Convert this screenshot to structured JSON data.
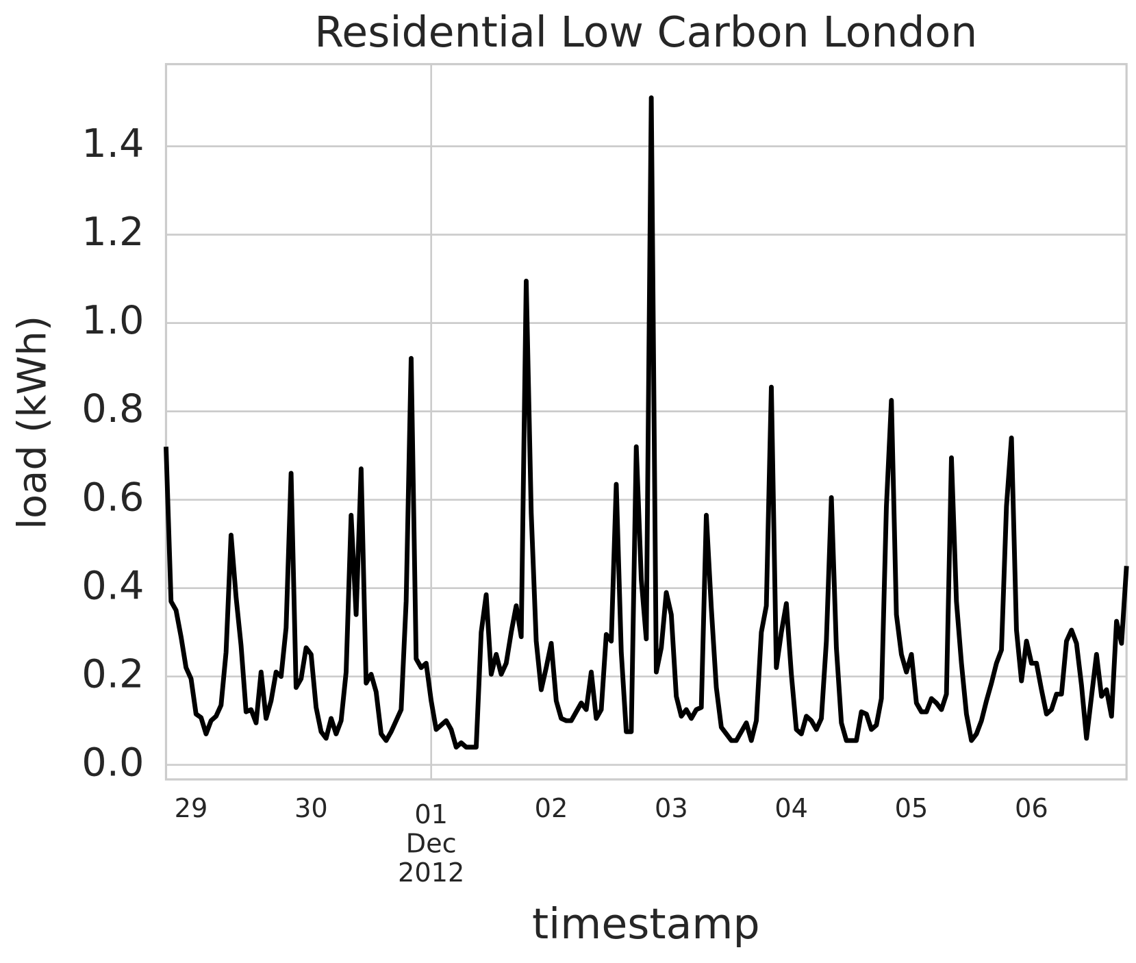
{
  "chart_data": {
    "type": "line",
    "title": "Residential Low Carbon London",
    "x_label": "timestamp",
    "y_label": "load (kWh)",
    "x": [
      "2012-11-28 19:00",
      "2012-11-28 20:00",
      "2012-11-28 21:00",
      "2012-11-28 22:00",
      "2012-11-28 23:00",
      "2012-11-29 00:00",
      "2012-11-29 01:00",
      "2012-11-29 02:00",
      "2012-11-29 03:00",
      "2012-11-29 04:00",
      "2012-11-29 05:00",
      "2012-11-29 06:00",
      "2012-11-29 07:00",
      "2012-11-29 08:00",
      "2012-11-29 09:00",
      "2012-11-29 10:00",
      "2012-11-29 11:00",
      "2012-11-29 12:00",
      "2012-11-29 13:00",
      "2012-11-29 14:00",
      "2012-11-29 15:00",
      "2012-11-29 16:00",
      "2012-11-29 17:00",
      "2012-11-29 18:00",
      "2012-11-29 19:00",
      "2012-11-29 20:00",
      "2012-11-29 21:00",
      "2012-11-29 22:00",
      "2012-11-29 23:00",
      "2012-11-30 00:00",
      "2012-11-30 01:00",
      "2012-11-30 02:00",
      "2012-11-30 03:00",
      "2012-11-30 04:00",
      "2012-11-30 05:00",
      "2012-11-30 06:00",
      "2012-11-30 07:00",
      "2012-11-30 08:00",
      "2012-11-30 09:00",
      "2012-11-30 10:00",
      "2012-11-30 11:00",
      "2012-11-30 12:00",
      "2012-11-30 13:00",
      "2012-11-30 14:00",
      "2012-11-30 15:00",
      "2012-11-30 16:00",
      "2012-11-30 17:00",
      "2012-11-30 18:00",
      "2012-11-30 19:00",
      "2012-11-30 20:00",
      "2012-11-30 21:00",
      "2012-11-30 22:00",
      "2012-11-30 23:00",
      "2012-12-01 00:00",
      "2012-12-01 01:00",
      "2012-12-01 02:00",
      "2012-12-01 03:00",
      "2012-12-01 04:00",
      "2012-12-01 05:00",
      "2012-12-01 06:00",
      "2012-12-01 07:00",
      "2012-12-01 08:00",
      "2012-12-01 09:00",
      "2012-12-01 10:00",
      "2012-12-01 11:00",
      "2012-12-01 12:00",
      "2012-12-01 13:00",
      "2012-12-01 14:00",
      "2012-12-01 15:00",
      "2012-12-01 16:00",
      "2012-12-01 17:00",
      "2012-12-01 18:00",
      "2012-12-01 19:00",
      "2012-12-01 20:00",
      "2012-12-01 21:00",
      "2012-12-01 22:00",
      "2012-12-01 23:00",
      "2012-12-02 00:00",
      "2012-12-02 01:00",
      "2012-12-02 02:00",
      "2012-12-02 03:00",
      "2012-12-02 04:00",
      "2012-12-02 05:00",
      "2012-12-02 06:00",
      "2012-12-02 07:00",
      "2012-12-02 08:00",
      "2012-12-02 09:00",
      "2012-12-02 10:00",
      "2012-12-02 11:00",
      "2012-12-02 12:00",
      "2012-12-02 13:00",
      "2012-12-02 14:00",
      "2012-12-02 15:00",
      "2012-12-02 16:00",
      "2012-12-02 17:00",
      "2012-12-02 18:00",
      "2012-12-02 19:00",
      "2012-12-02 20:00",
      "2012-12-02 21:00",
      "2012-12-02 22:00",
      "2012-12-02 23:00",
      "2012-12-03 00:00",
      "2012-12-03 01:00",
      "2012-12-03 02:00",
      "2012-12-03 03:00",
      "2012-12-03 04:00",
      "2012-12-03 05:00",
      "2012-12-03 06:00",
      "2012-12-03 07:00",
      "2012-12-03 08:00",
      "2012-12-03 09:00",
      "2012-12-03 10:00",
      "2012-12-03 11:00",
      "2012-12-03 12:00",
      "2012-12-03 13:00",
      "2012-12-03 14:00",
      "2012-12-03 15:00",
      "2012-12-03 16:00",
      "2012-12-03 17:00",
      "2012-12-03 18:00",
      "2012-12-03 19:00",
      "2012-12-03 20:00",
      "2012-12-03 21:00",
      "2012-12-03 22:00",
      "2012-12-03 23:00",
      "2012-12-04 00:00",
      "2012-12-04 01:00",
      "2012-12-04 02:00",
      "2012-12-04 03:00",
      "2012-12-04 04:00",
      "2012-12-04 05:00",
      "2012-12-04 06:00",
      "2012-12-04 07:00",
      "2012-12-04 08:00",
      "2012-12-04 09:00",
      "2012-12-04 10:00",
      "2012-12-04 11:00",
      "2012-12-04 12:00",
      "2012-12-04 13:00",
      "2012-12-04 14:00",
      "2012-12-04 15:00",
      "2012-12-04 16:00",
      "2012-12-04 17:00",
      "2012-12-04 18:00",
      "2012-12-04 19:00",
      "2012-12-04 20:00",
      "2012-12-04 21:00",
      "2012-12-04 22:00",
      "2012-12-04 23:00",
      "2012-12-05 00:00",
      "2012-12-05 01:00",
      "2012-12-05 02:00",
      "2012-12-05 03:00",
      "2012-12-05 04:00",
      "2012-12-05 05:00",
      "2012-12-05 06:00",
      "2012-12-05 07:00",
      "2012-12-05 08:00",
      "2012-12-05 09:00",
      "2012-12-05 10:00",
      "2012-12-05 11:00",
      "2012-12-05 12:00",
      "2012-12-05 13:00",
      "2012-12-05 14:00",
      "2012-12-05 15:00",
      "2012-12-05 16:00",
      "2012-12-05 17:00",
      "2012-12-05 18:00",
      "2012-12-05 19:00",
      "2012-12-05 20:00",
      "2012-12-05 21:00",
      "2012-12-05 22:00",
      "2012-12-05 23:00",
      "2012-12-06 00:00",
      "2012-12-06 01:00",
      "2012-12-06 02:00",
      "2012-12-06 03:00",
      "2012-12-06 04:00",
      "2012-12-06 05:00",
      "2012-12-06 06:00",
      "2012-12-06 07:00",
      "2012-12-06 08:00",
      "2012-12-06 09:00",
      "2012-12-06 10:00",
      "2012-12-06 11:00",
      "2012-12-06 12:00",
      "2012-12-06 13:00",
      "2012-12-06 14:00",
      "2012-12-06 15:00",
      "2012-12-06 16:00",
      "2012-12-06 17:00",
      "2012-12-06 18:00",
      "2012-12-06 19:00"
    ],
    "series": [
      {
        "name": "load",
        "color": "#000000",
        "values": [
          0.72,
          0.37,
          0.35,
          0.29,
          0.22,
          0.195,
          0.115,
          0.107,
          0.07,
          0.1,
          0.11,
          0.135,
          0.255,
          0.52,
          0.38,
          0.27,
          0.12,
          0.125,
          0.095,
          0.21,
          0.105,
          0.145,
          0.21,
          0.2,
          0.31,
          0.66,
          0.175,
          0.195,
          0.265,
          0.25,
          0.13,
          0.075,
          0.06,
          0.105,
          0.07,
          0.1,
          0.21,
          0.565,
          0.34,
          0.67,
          0.185,
          0.205,
          0.165,
          0.07,
          0.055,
          0.075,
          0.1,
          0.125,
          0.37,
          0.92,
          0.24,
          0.22,
          0.23,
          0.145,
          0.08,
          0.09,
          0.1,
          0.08,
          0.04,
          0.05,
          0.04,
          0.04,
          0.04,
          0.3,
          0.385,
          0.205,
          0.25,
          0.205,
          0.23,
          0.3,
          0.36,
          0.29,
          1.095,
          0.57,
          0.28,
          0.17,
          0.22,
          0.275,
          0.145,
          0.105,
          0.1,
          0.1,
          0.12,
          0.14,
          0.125,
          0.21,
          0.105,
          0.125,
          0.295,
          0.28,
          0.635,
          0.255,
          0.075,
          0.075,
          0.72,
          0.42,
          0.285,
          1.51,
          0.21,
          0.265,
          0.39,
          0.34,
          0.155,
          0.11,
          0.125,
          0.105,
          0.125,
          0.13,
          0.565,
          0.355,
          0.175,
          0.085,
          0.07,
          0.055,
          0.055,
          0.075,
          0.095,
          0.055,
          0.1,
          0.3,
          0.36,
          0.855,
          0.22,
          0.3,
          0.365,
          0.205,
          0.08,
          0.07,
          0.11,
          0.1,
          0.08,
          0.105,
          0.28,
          0.605,
          0.265,
          0.095,
          0.055,
          0.055,
          0.055,
          0.12,
          0.115,
          0.08,
          0.09,
          0.15,
          0.585,
          0.825,
          0.34,
          0.25,
          0.21,
          0.25,
          0.14,
          0.12,
          0.12,
          0.15,
          0.14,
          0.125,
          0.16,
          0.695,
          0.37,
          0.23,
          0.115,
          0.055,
          0.07,
          0.1,
          0.145,
          0.185,
          0.23,
          0.26,
          0.585,
          0.74,
          0.305,
          0.19,
          0.28,
          0.23,
          0.23,
          0.17,
          0.115,
          0.125,
          0.16,
          0.16,
          0.28,
          0.305,
          0.275,
          0.18,
          0.06,
          0.155,
          0.25,
          0.155,
          0.17,
          0.11,
          0.325,
          0.275,
          0.45
        ]
      }
    ],
    "xlim": [
      "2012-11-28 19:00",
      "2012-12-06 19:00"
    ],
    "xticks": [
      {
        "value": "2012-11-29 00:00",
        "label": "29"
      },
      {
        "value": "2012-11-30 00:00",
        "label": "30"
      },
      {
        "value": "2012-12-01 00:00",
        "label": "01\nDec\n2012",
        "grid": true
      },
      {
        "value": "2012-12-02 00:00",
        "label": "02"
      },
      {
        "value": "2012-12-03 00:00",
        "label": "03"
      },
      {
        "value": "2012-12-04 00:00",
        "label": "04"
      },
      {
        "value": "2012-12-05 00:00",
        "label": "05"
      },
      {
        "value": "2012-12-06 00:00",
        "label": "06"
      }
    ],
    "ylim": [
      -0.033,
      1.586
    ],
    "yticks": [
      {
        "value": 0,
        "label": "0.0"
      },
      0.2,
      0.4,
      0.6,
      0.8,
      {
        "value": 1,
        "label": "1.0"
      },
      1.2,
      1.4
    ],
    "grid": true
  }
}
